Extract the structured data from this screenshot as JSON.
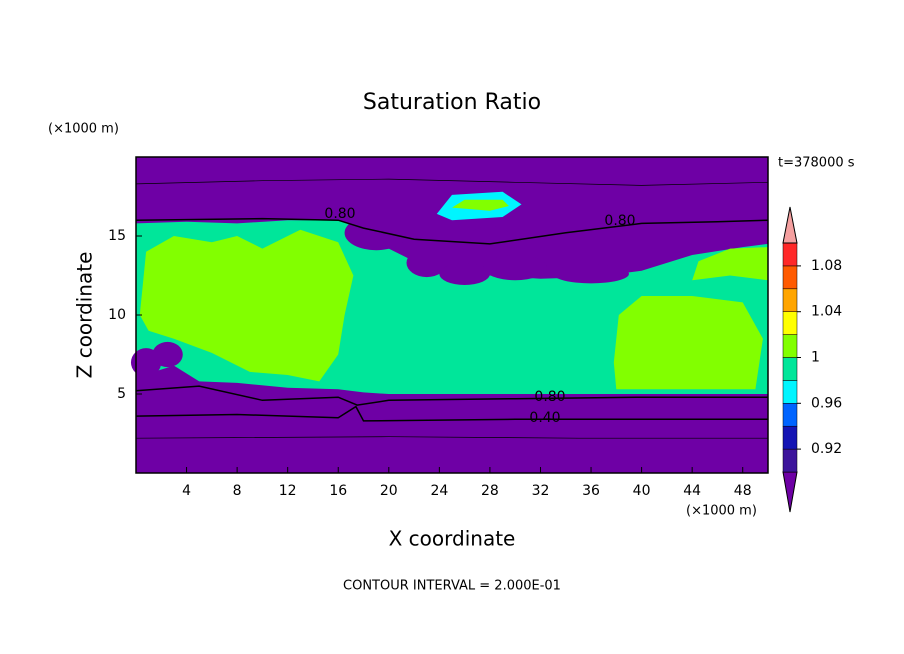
{
  "chart_data": {
    "type": "contour",
    "title": "Saturation Ratio",
    "x_label": "X coordinate",
    "y_label": "Z coordinate",
    "x_unit": "(×1000 m)",
    "y_unit": "(×1000 m)",
    "time_label": "t=378000 s",
    "footer": "CONTOUR INTERVAL = 2.000E-01",
    "contour_labels": [
      "0.80",
      "0.80",
      "0.80",
      "0.40"
    ],
    "xlim": [
      0,
      50
    ],
    "xticks": [
      4,
      8,
      12,
      16,
      20,
      24,
      28,
      32,
      36,
      40,
      44,
      48
    ],
    "ylim": [
      0,
      20
    ],
    "yticks": [
      5,
      10,
      15
    ],
    "colorbar": {
      "levels": [
        0.9,
        0.92,
        0.94,
        0.96,
        0.98,
        1,
        1.02,
        1.04,
        1.06,
        1.08,
        1.1
      ],
      "ticks": [
        0.92,
        0.96,
        1,
        1.04,
        1.08
      ],
      "colors": [
        "#6e00a5",
        "#3c149b",
        "#1414b4",
        "#0064ff",
        "#00f5ff",
        "#00e69a",
        "#82ff00",
        "#ffff00",
        "#ffa500",
        "#ff5a00",
        "#ff2828",
        "#f5a0a0"
      ]
    }
  }
}
